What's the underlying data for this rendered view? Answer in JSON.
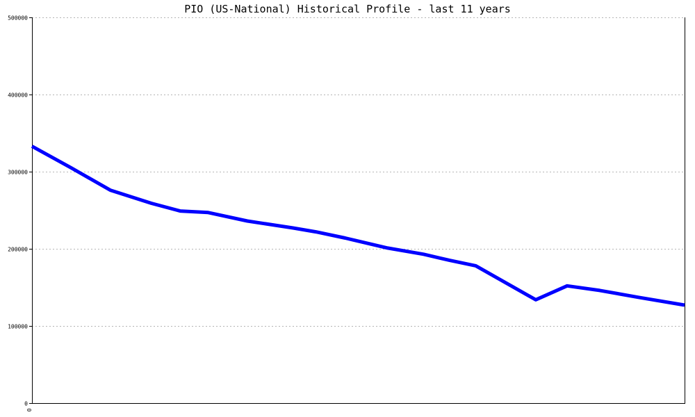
{
  "chart_data": {
    "type": "line",
    "title": "PIO (US-National) Historical Profile - last 11 years",
    "xlabel": "",
    "ylabel": "",
    "x_tick_labels": [
      "0"
    ],
    "y_ticks": [
      0,
      100000,
      200000,
      300000,
      400000,
      500000
    ],
    "y_tick_labels": [
      "0",
      "100000",
      "200000",
      "300000",
      "400000",
      "500000"
    ],
    "ylim": [
      0,
      500000
    ],
    "grid": "horizontal dashed",
    "legend": "none",
    "series": [
      {
        "color": "#0000ff",
        "points": [
          [
            0.0,
            333000
          ],
          [
            0.06,
            305000
          ],
          [
            0.12,
            276000
          ],
          [
            0.183,
            259000
          ],
          [
            0.227,
            249000
          ],
          [
            0.27,
            247000
          ],
          [
            0.33,
            236000
          ],
          [
            0.4,
            227000
          ],
          [
            0.435,
            222000
          ],
          [
            0.48,
            214000
          ],
          [
            0.545,
            201000
          ],
          [
            0.6,
            193000
          ],
          [
            0.64,
            185000
          ],
          [
            0.68,
            178000
          ],
          [
            0.772,
            134000
          ],
          [
            0.82,
            152000
          ],
          [
            0.87,
            146000
          ],
          [
            0.93,
            137000
          ],
          [
            1.0,
            127000
          ]
        ]
      }
    ]
  }
}
